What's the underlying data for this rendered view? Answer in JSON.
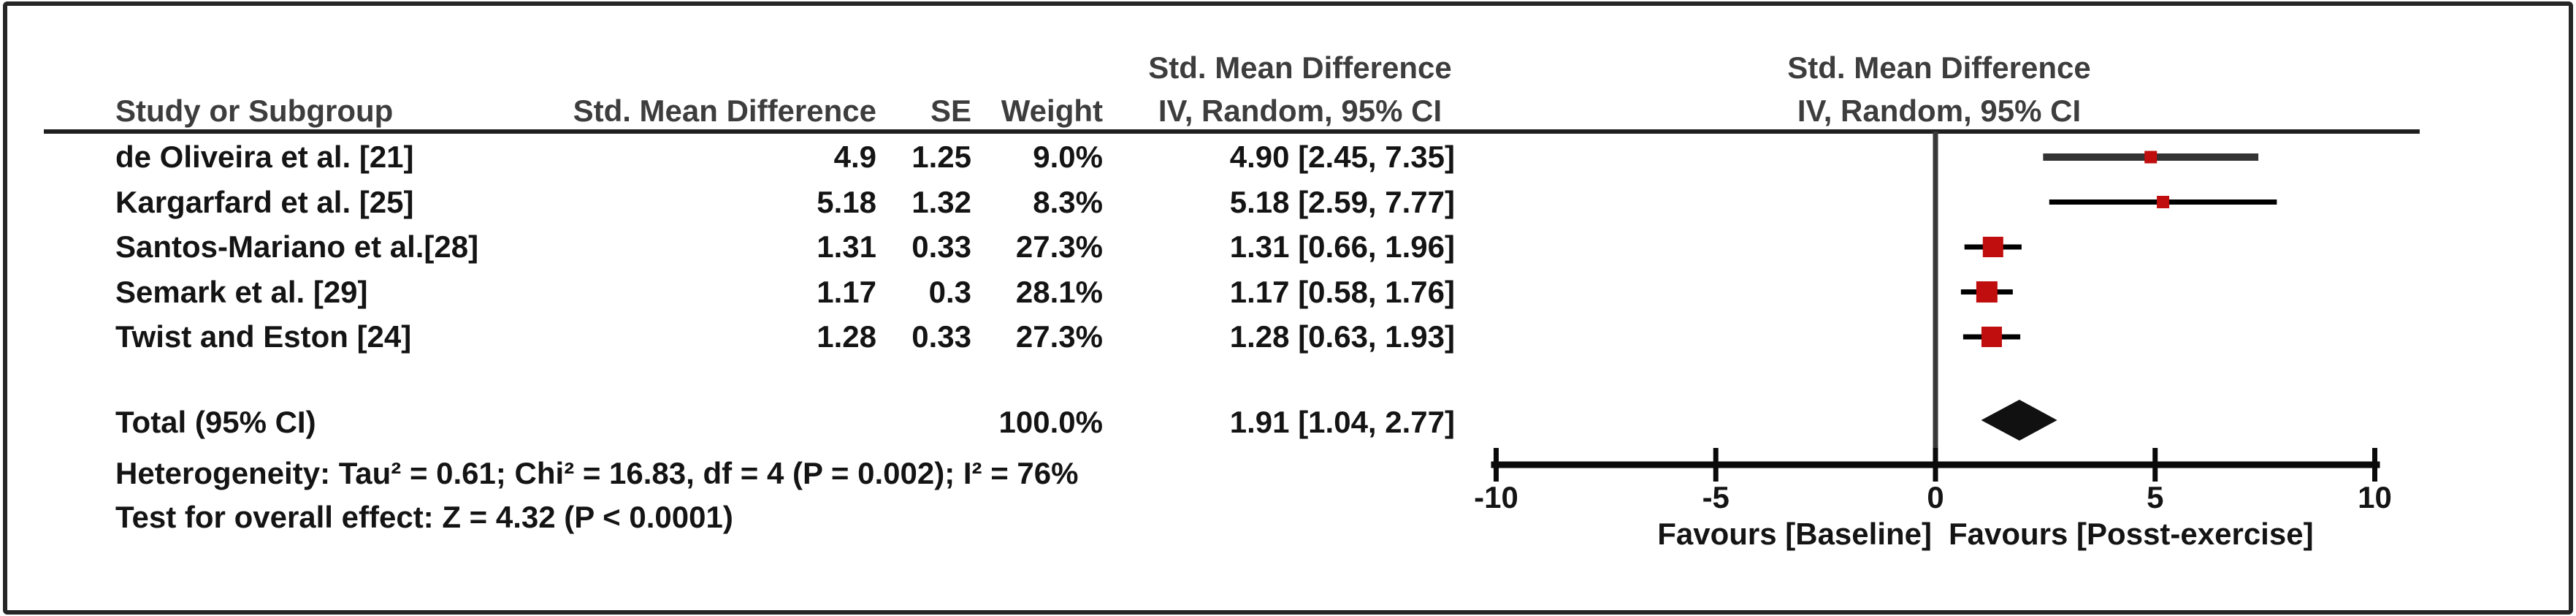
{
  "chart_data": {
    "type": "forest",
    "title": "Forest plot - Std. Mean Difference, IV, Random, 95% CI",
    "left_header": {
      "ci_col_top": "Std. Mean Difference",
      "study": "Study or Subgroup",
      "smd": "Std. Mean Difference",
      "se": "SE",
      "weight": "Weight",
      "ci_col_bottom": "IV, Random, 95% CI"
    },
    "right_header": {
      "top": "Std. Mean Difference",
      "bottom": "IV, Random, 95% CI"
    },
    "studies": [
      {
        "label": "de Oliveira et al. [21]",
        "smd_text": "4.9",
        "se_text": "1.25",
        "weight_text": "9.0%",
        "ci_text": "4.90 [2.45, 7.35]",
        "est": 4.9,
        "lo": 2.45,
        "hi": 7.35,
        "weight_pct": 9.0,
        "ci_color": "#333333",
        "ci_width": 10
      },
      {
        "label": "Kargarfard et al. [25]",
        "smd_text": "5.18",
        "se_text": "1.32",
        "weight_text": "8.3%",
        "ci_text": "5.18 [2.59, 7.77]",
        "est": 5.18,
        "lo": 2.59,
        "hi": 7.77,
        "weight_pct": 8.3,
        "ci_color": "#000000",
        "ci_width": 7
      },
      {
        "label": "Santos-Mariano et al.[28]",
        "smd_text": "1.31",
        "se_text": "0.33",
        "weight_text": "27.3%",
        "ci_text": "1.31 [0.66, 1.96]",
        "est": 1.31,
        "lo": 0.66,
        "hi": 1.96,
        "weight_pct": 27.3,
        "ci_color": "#000000",
        "ci_width": 7
      },
      {
        "label": "Semark et al. [29]",
        "smd_text": "1.17",
        "se_text": "0.3",
        "weight_text": "28.1%",
        "ci_text": "1.17 [0.58, 1.76]",
        "est": 1.17,
        "lo": 0.58,
        "hi": 1.76,
        "weight_pct": 28.1,
        "ci_color": "#000000",
        "ci_width": 7
      },
      {
        "label": "Twist and Eston [24]",
        "smd_text": "1.28",
        "se_text": "0.33",
        "weight_text": "27.3%",
        "ci_text": "1.28 [0.63, 1.93]",
        "est": 1.28,
        "lo": 0.63,
        "hi": 1.93,
        "weight_pct": 27.3,
        "ci_color": "#000000",
        "ci_width": 7
      }
    ],
    "total": {
      "label": "Total (95% CI)",
      "weight_text": "100.0%",
      "ci_text": "1.91 [1.04, 2.77]",
      "est": 1.91,
      "lo": 1.04,
      "hi": 2.77
    },
    "footnotes": {
      "heterogeneity": "Heterogeneity: Tau² = 0.61; Chi² = 16.83, df = 4 (P = 0.002); I² = 76%",
      "overall_effect": "Test for overall effect: Z = 4.32 (P < 0.0001)"
    },
    "axis": {
      "min": -10,
      "max": 10,
      "ticks": [
        -10,
        -5,
        0,
        5,
        10
      ]
    },
    "favours": {
      "left": "Favours [Baseline]",
      "right": "Favours [Posst-exercise]"
    },
    "colors": {
      "marker": "#C00E0E",
      "diamond": "#111111",
      "zero_line": "#383838",
      "axis": "#0a0a0a",
      "text": "#141414"
    }
  }
}
